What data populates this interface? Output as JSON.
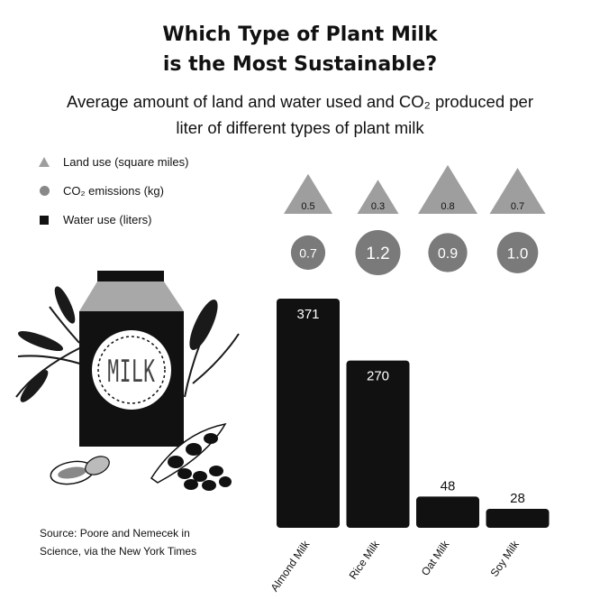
{
  "title_line1": "Which Type of Plant Milk",
  "title_line2": "is the Most Sustainable?",
  "subtitle_line1": "Average amount of land and water used and CO₂ produced per",
  "subtitle_line2": "liter of different types of plant milk",
  "legend": {
    "land": "Land use (square miles)",
    "co2": "CO₂ emissions (kg)",
    "water": "Water use (liters)"
  },
  "illustration": {
    "carton_label": "MILK"
  },
  "source_line1": "Source: Poore and Nemecek in",
  "source_line2": "Science, via the New York Times",
  "colors": {
    "bar": "#111111",
    "triangle": "#9e9e9e",
    "circle": "#7a7a7a",
    "text": "#111111"
  },
  "chart_data": {
    "type": "bar",
    "categories": [
      "Almond Milk",
      "Rice Milk",
      "Oat Milk",
      "Soy Milk"
    ],
    "series": [
      {
        "name": "Water use (liters)",
        "values": [
          371,
          270,
          48,
          28
        ]
      },
      {
        "name": "Land use (square miles)",
        "values": [
          0.5,
          0.3,
          0.8,
          0.7
        ],
        "display": [
          "0.5",
          "0.3",
          "0.8",
          "0.7"
        ]
      },
      {
        "name": "CO₂ emissions (kg)",
        "values": [
          0.7,
          1.2,
          0.9,
          1.0
        ],
        "display": [
          "0.7",
          "1.2",
          "0.9",
          "1.0"
        ]
      }
    ],
    "xlabel": "",
    "ylabel": "",
    "ylim": [
      0,
      371
    ],
    "grid": false,
    "legend_position": "top-left"
  }
}
